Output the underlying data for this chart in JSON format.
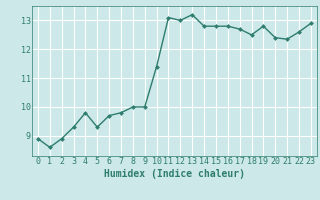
{
  "x": [
    0,
    1,
    2,
    3,
    4,
    5,
    6,
    7,
    8,
    9,
    10,
    11,
    12,
    13,
    14,
    15,
    16,
    17,
    18,
    19,
    20,
    21,
    22,
    23
  ],
  "y": [
    8.9,
    8.6,
    8.9,
    9.3,
    9.8,
    9.3,
    9.7,
    9.8,
    10.0,
    10.0,
    11.4,
    13.1,
    13.0,
    13.2,
    12.8,
    12.8,
    12.8,
    12.7,
    12.5,
    12.8,
    12.4,
    12.35,
    12.6,
    12.9
  ],
  "line_color": "#2e7d6e",
  "marker": "D",
  "marker_size": 2.0,
  "line_width": 1.0,
  "xlabel": "Humidex (Indice chaleur)",
  "xlim": [
    -0.5,
    23.5
  ],
  "ylim": [
    8.3,
    13.5
  ],
  "yticks": [
    9,
    10,
    11,
    12,
    13
  ],
  "xticks": [
    0,
    1,
    2,
    3,
    4,
    5,
    6,
    7,
    8,
    9,
    10,
    11,
    12,
    13,
    14,
    15,
    16,
    17,
    18,
    19,
    20,
    21,
    22,
    23
  ],
  "bg_color": "#cce8e8",
  "grid_color": "#ffffff",
  "font_color": "#2e7d6e",
  "xlabel_fontsize": 7,
  "tick_fontsize": 6
}
